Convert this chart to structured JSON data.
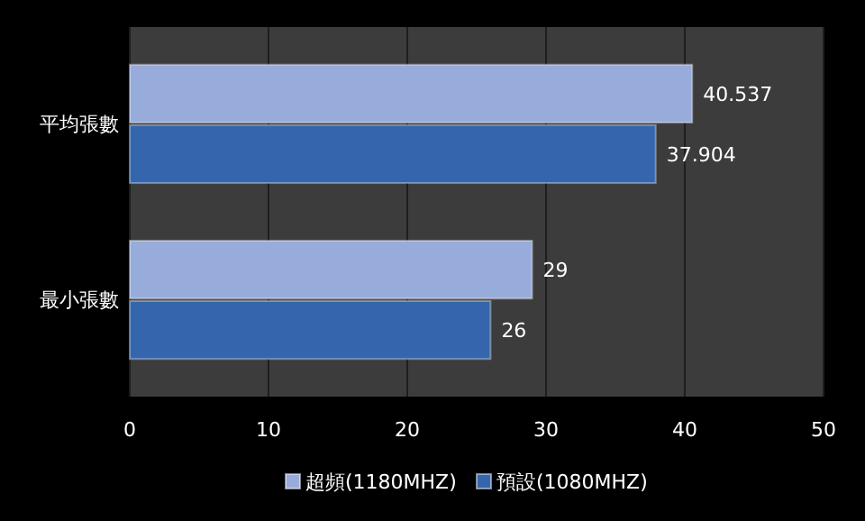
{
  "chart_data": {
    "type": "bar",
    "orientation": "horizontal",
    "categories": [
      "平均張數",
      "最小張數"
    ],
    "series": [
      {
        "name": "超頻(1180MHZ)",
        "color": "#98acdc",
        "values": [
          40.537,
          29
        ]
      },
      {
        "name": "預設(1080MHZ)",
        "color": "#3566ad",
        "values": [
          37.904,
          26
        ]
      }
    ],
    "xlim": [
      0,
      50
    ],
    "xticks": [
      0,
      10,
      20,
      30,
      40,
      50
    ],
    "grid": "x",
    "legend": "bottom",
    "data_labels": true
  }
}
